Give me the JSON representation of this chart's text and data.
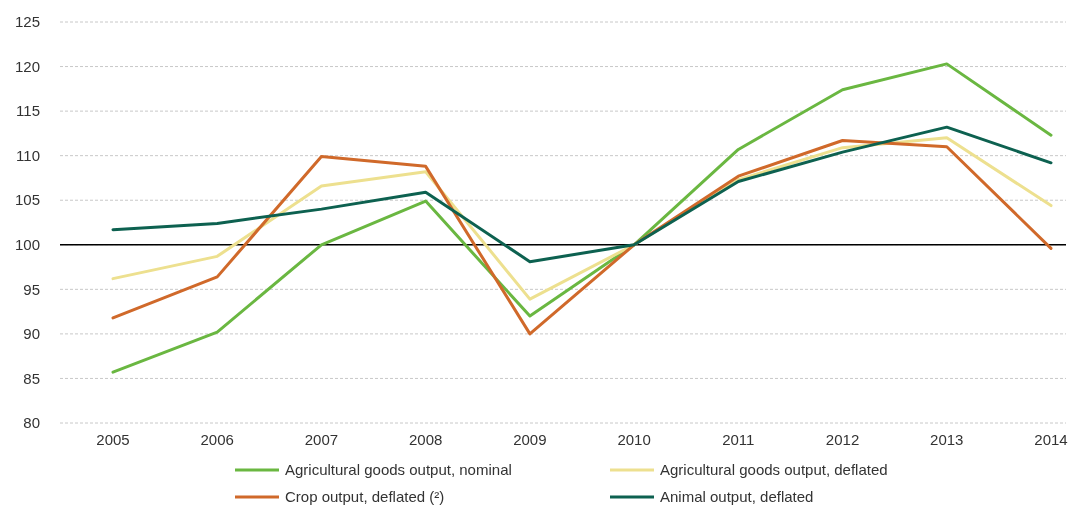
{
  "chart_data": {
    "type": "line",
    "categories": [
      "2005",
      "2006",
      "2007",
      "2008",
      "2009",
      "2010",
      "2011",
      "2012",
      "2013",
      "2014"
    ],
    "series": [
      {
        "name": "Agricultural goods output, nominal",
        "color": "#6ab741",
        "values": [
          85.7,
          90.2,
          100,
          104.9,
          92.0,
          100,
          110.7,
          117.4,
          120.3,
          112.3
        ]
      },
      {
        "name": "Agricultural goods output, deflated",
        "color": "#ede08f",
        "values": [
          96.2,
          98.7,
          106.6,
          108.2,
          93.9,
          100,
          107.3,
          110.9,
          112.0,
          104.4
        ]
      },
      {
        "name": "Crop output, deflated (²)",
        "color": "#d0692a",
        "values": [
          91.8,
          96.4,
          109.9,
          108.8,
          90.0,
          100,
          107.7,
          111.7,
          111.0,
          99.6
        ]
      },
      {
        "name": "Animal output, deflated",
        "color": "#0d6150",
        "values": [
          101.7,
          102.4,
          104.0,
          105.9,
          98.1,
          100,
          107.1,
          110.4,
          113.2,
          109.2
        ]
      }
    ],
    "ylim": [
      80,
      125
    ],
    "yticks": [
      80,
      85,
      90,
      95,
      100,
      105,
      110,
      115,
      120,
      125
    ],
    "grid": "y",
    "legend": "bottom",
    "line_style": "solid",
    "marker": "none",
    "ref_lines": [
      {
        "axis": "y",
        "value": 100,
        "color": "#000000"
      }
    ]
  }
}
